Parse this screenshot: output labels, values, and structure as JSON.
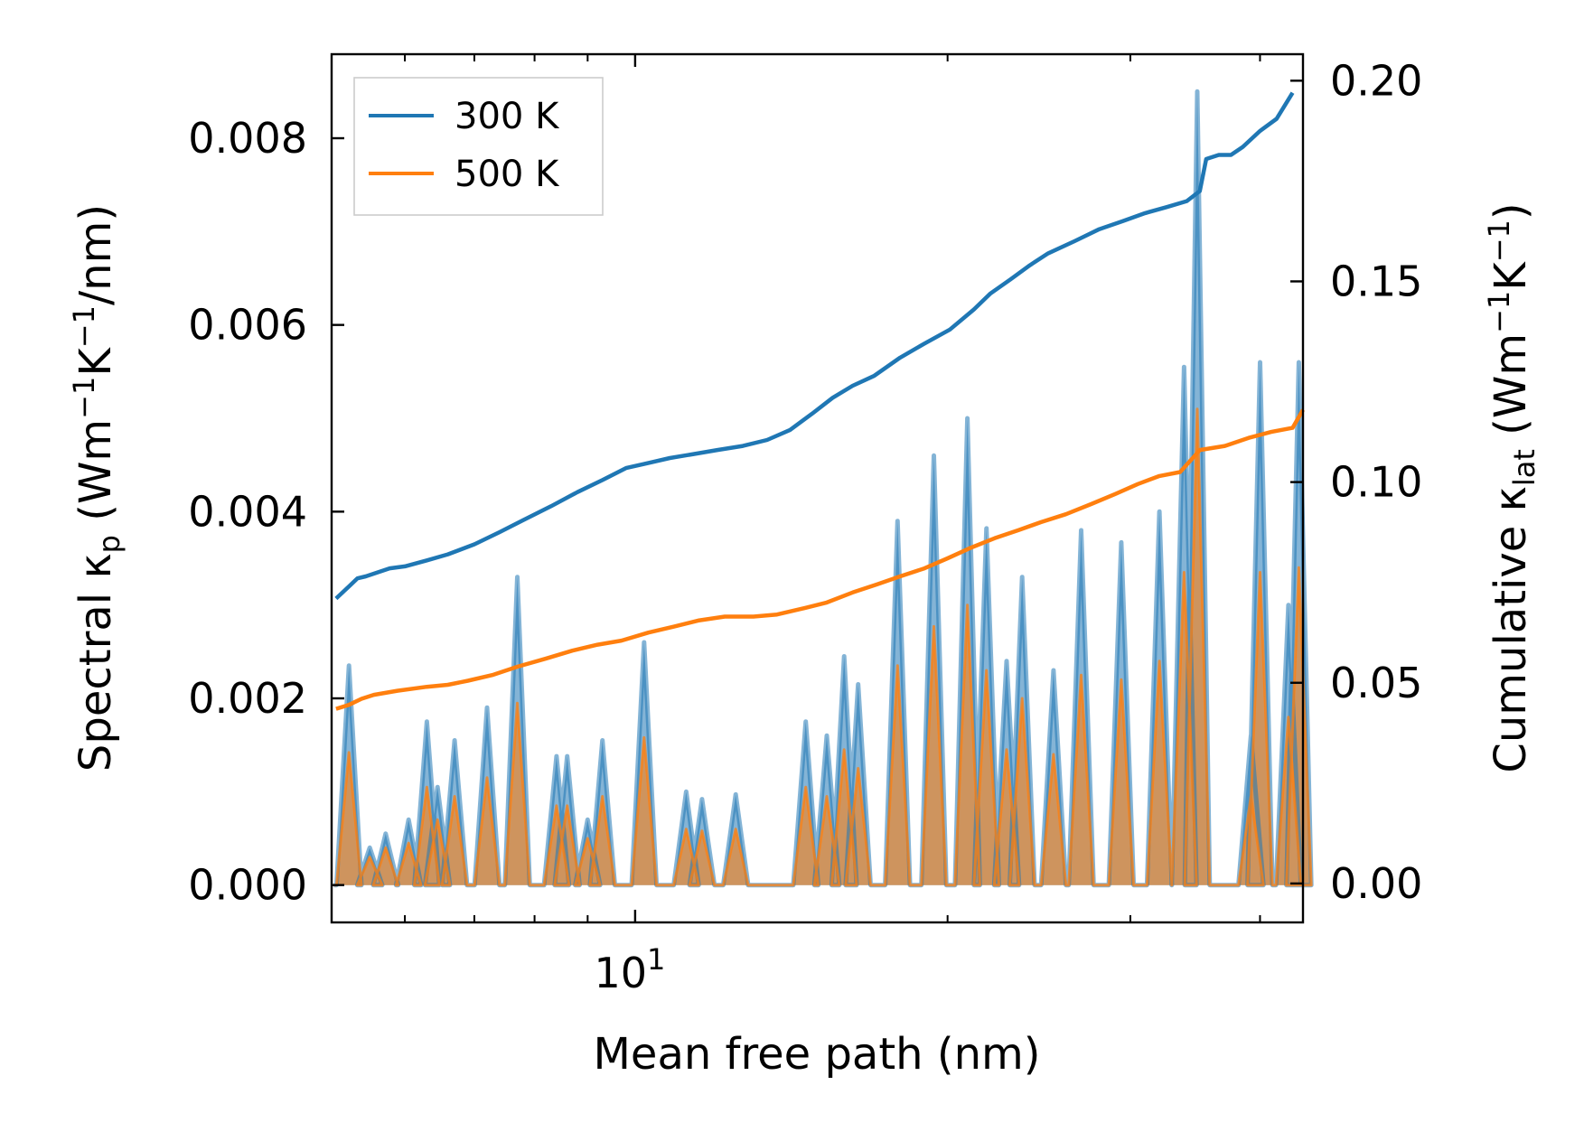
{
  "chart_data": {
    "type": "line",
    "xlabel": "Mean free path (nm)",
    "xscale": "log",
    "xlim": [
      5.1,
      44
    ],
    "x_major_ticks": [
      {
        "value": 10,
        "base": "10",
        "exp": "1"
      }
    ],
    "x_minor_ticks": [
      6,
      7,
      8,
      9,
      20,
      30,
      40
    ],
    "y_left": {
      "label_prefix": "Spectral κ",
      "label_sub": "p",
      "label_unit_pre": " (Wm",
      "label_sup1": "−1",
      "label_mid": "K",
      "label_sup2": "−1",
      "label_unit_post": "/nm)",
      "lim": [
        -0.0004,
        0.0089
      ],
      "ticks": [
        0.0,
        0.002,
        0.004,
        0.006,
        0.008
      ],
      "tick_labels": [
        "0.000",
        "0.002",
        "0.004",
        "0.006",
        "0.008"
      ]
    },
    "y_right": {
      "label_prefix": "Cumulative κ",
      "label_sub": "lat",
      "label_unit_pre": " (Wm",
      "label_sup1": "−1",
      "label_mid": "K",
      "label_sup2": "−1",
      "label_unit_post": ")",
      "lim": [
        -0.0097,
        0.2066
      ],
      "ticks": [
        0.0,
        0.05,
        0.1,
        0.15,
        0.2
      ],
      "tick_labels": [
        "0.00",
        "0.05",
        "0.10",
        "0.15",
        "0.20"
      ]
    },
    "legend_position": "top-left",
    "series": [
      {
        "name": "300 K",
        "color": "#1f77b4",
        "cumulative": {
          "x": [
            5.15,
            5.3,
            5.4,
            5.5,
            5.8,
            6.0,
            6.3,
            6.6,
            7.0,
            7.4,
            7.8,
            8.3,
            8.8,
            9.3,
            9.8,
            10.2,
            10.8,
            11.4,
            12.0,
            12.7,
            13.4,
            14.1,
            14.8,
            15.5,
            16.2,
            17.0,
            18.0,
            19.0,
            20.1,
            21.2,
            22.0,
            23.0,
            24.0,
            25.0,
            26.5,
            28.0,
            29.5,
            31.0,
            32.5,
            34.0,
            35.0,
            35.5,
            36.5,
            37.5,
            38.5,
            40.0,
            41.5,
            43.0
          ],
          "values": [
            0.071,
            0.074,
            0.076,
            0.0765,
            0.0785,
            0.079,
            0.0805,
            0.082,
            0.0845,
            0.0875,
            0.0905,
            0.094,
            0.0975,
            0.1005,
            0.1035,
            0.1045,
            0.106,
            0.107,
            0.108,
            0.109,
            0.1105,
            0.113,
            0.117,
            0.121,
            0.124,
            0.1265,
            0.131,
            0.1345,
            0.138,
            0.143,
            0.147,
            0.1505,
            0.154,
            0.157,
            0.16,
            0.163,
            0.165,
            0.167,
            0.1685,
            0.17,
            0.1725,
            0.1805,
            0.1815,
            0.1815,
            0.1835,
            0.1875,
            0.1905,
            0.197
          ]
        },
        "spectral": {
          "peaks": [
            [
              5.3,
              0.00235
            ],
            [
              5.55,
              0.0004
            ],
            [
              5.75,
              0.00055
            ],
            [
              6.05,
              0.0007
            ],
            [
              6.3,
              0.00175
            ],
            [
              6.45,
              0.00105
            ],
            [
              6.7,
              0.00155
            ],
            [
              7.2,
              0.0019
            ],
            [
              7.7,
              0.0033
            ],
            [
              8.4,
              0.00138
            ],
            [
              8.6,
              0.00138
            ],
            [
              9.0,
              0.0007
            ],
            [
              9.3,
              0.00155
            ],
            [
              10.2,
              0.0026
            ],
            [
              11.2,
              0.001
            ],
            [
              11.6,
              0.00092
            ],
            [
              12.5,
              0.00097
            ],
            [
              14.6,
              0.00175
            ],
            [
              15.3,
              0.0016
            ],
            [
              15.9,
              0.00245
            ],
            [
              16.4,
              0.00215
            ],
            [
              17.9,
              0.0039
            ],
            [
              19.4,
              0.0046
            ],
            [
              20.9,
              0.005
            ],
            [
              21.8,
              0.00382
            ],
            [
              22.8,
              0.0024
            ],
            [
              23.6,
              0.0033
            ],
            [
              25.3,
              0.0023
            ],
            [
              26.9,
              0.0038
            ],
            [
              29.4,
              0.00367
            ],
            [
              32.0,
              0.004
            ],
            [
              33.8,
              0.00555
            ],
            [
              34.8,
              0.0085
            ],
            [
              39.2,
              0.0016
            ],
            [
              40.0,
              0.0056
            ],
            [
              42.6,
              0.003
            ],
            [
              43.6,
              0.0056
            ]
          ]
        }
      },
      {
        "name": "500 K",
        "color": "#ff7f0e",
        "cumulative": {
          "x": [
            5.15,
            5.3,
            5.45,
            5.6,
            5.9,
            6.3,
            6.6,
            6.9,
            7.3,
            7.7,
            8.2,
            8.7,
            9.2,
            9.7,
            10.3,
            10.9,
            11.5,
            12.2,
            13.0,
            13.7,
            14.5,
            15.3,
            16.2,
            17.1,
            18.0,
            19.0,
            20.0,
            21.0,
            22.2,
            23.4,
            24.6,
            26.0,
            27.5,
            29.0,
            30.5,
            32.0,
            33.5,
            34.6,
            35.0,
            37.0,
            39.0,
            41.0,
            43.0,
            44.0
          ],
          "values": [
            0.0435,
            0.0445,
            0.046,
            0.047,
            0.048,
            0.049,
            0.0495,
            0.0505,
            0.052,
            0.054,
            0.056,
            0.058,
            0.0595,
            0.0605,
            0.0625,
            0.064,
            0.0655,
            0.0665,
            0.0665,
            0.067,
            0.0685,
            0.07,
            0.0725,
            0.0745,
            0.0765,
            0.0785,
            0.081,
            0.0835,
            0.086,
            0.088,
            0.09,
            0.092,
            0.0945,
            0.097,
            0.0995,
            0.1015,
            0.1025,
            0.1065,
            0.108,
            0.109,
            0.111,
            0.1125,
            0.1135,
            0.118
          ]
        },
        "spectral": {
          "peaks": [
            [
              5.3,
              0.00142
            ],
            [
              5.55,
              0.0003
            ],
            [
              5.75,
              0.0004
            ],
            [
              6.05,
              0.00045
            ],
            [
              6.3,
              0.00105
            ],
            [
              6.45,
              0.0007
            ],
            [
              6.7,
              0.00095
            ],
            [
              7.2,
              0.00115
            ],
            [
              7.7,
              0.00195
            ],
            [
              8.4,
              0.00085
            ],
            [
              8.6,
              0.00085
            ],
            [
              9.0,
              0.0005
            ],
            [
              9.3,
              0.00095
            ],
            [
              10.2,
              0.00158
            ],
            [
              11.2,
              0.0006
            ],
            [
              11.6,
              0.00058
            ],
            [
              12.5,
              0.0006
            ],
            [
              14.6,
              0.00105
            ],
            [
              15.3,
              0.00095
            ],
            [
              15.9,
              0.00145
            ],
            [
              16.4,
              0.00125
            ],
            [
              17.9,
              0.00235
            ],
            [
              19.4,
              0.00277
            ],
            [
              20.9,
              0.003
            ],
            [
              21.8,
              0.0023
            ],
            [
              22.8,
              0.00145
            ],
            [
              23.6,
              0.002
            ],
            [
              25.3,
              0.0014
            ],
            [
              26.9,
              0.00225
            ],
            [
              29.4,
              0.0022
            ],
            [
              32.0,
              0.0024
            ],
            [
              33.8,
              0.00335
            ],
            [
              34.8,
              0.0051
            ],
            [
              39.2,
              0.00095
            ],
            [
              40.0,
              0.00335
            ],
            [
              42.6,
              0.0018
            ],
            [
              43.6,
              0.0034
            ]
          ]
        }
      }
    ]
  }
}
